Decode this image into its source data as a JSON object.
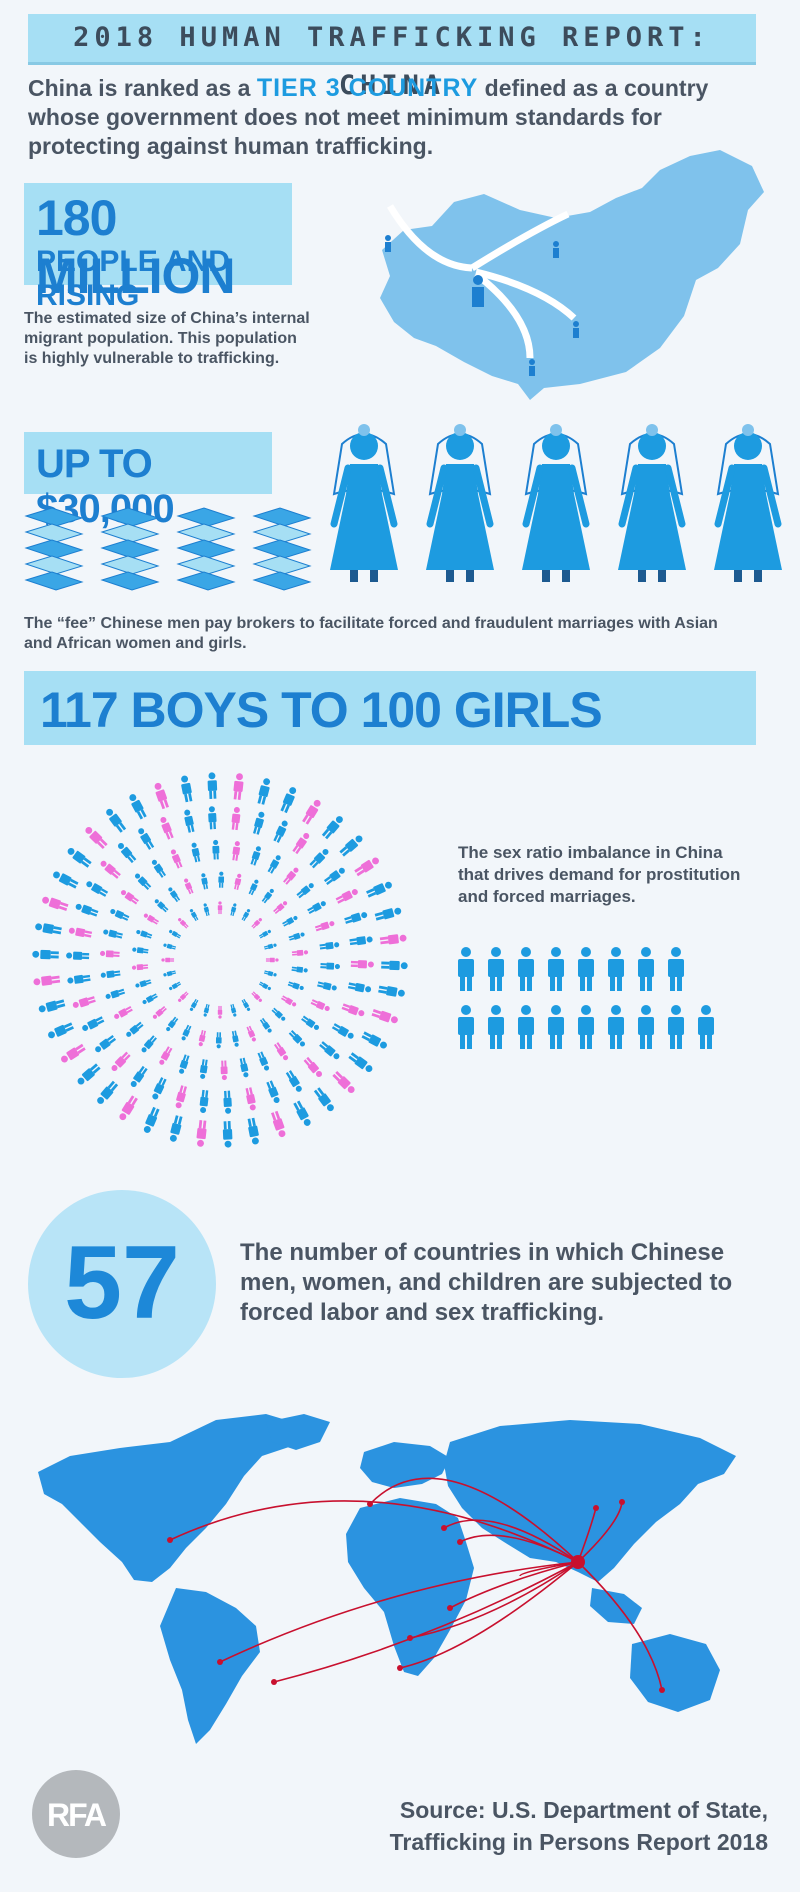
{
  "header": {
    "title": "2018 HUMAN TRAFFICKING REPORT: CHINA"
  },
  "intro": {
    "before": "China is ranked as a ",
    "highlight": "TIER 3 COUNTRY",
    "after": " defined as a country whose government does not meet minimum standards for protecting against human trafficking."
  },
  "migrants": {
    "line1": "180 MILLION",
    "line2": "PEOPLE AND RISING",
    "description": "The estimated size of China’s internal migrant population. This population is highly vulnerable to trafficking."
  },
  "fee": {
    "amount": "UP TO $30,000",
    "description": "The “fee” Chinese men pay brokers to facilitate forced and fraudulent marriages with Asian and African women and girls.",
    "bride_count": 5,
    "money_stacks": 4
  },
  "ratio": {
    "headline": "117 BOYS TO 100 GIRLS",
    "description": "The sex ratio imbalance in China that drives demand for prostitution and forced marriages.",
    "row1_count": 8,
    "row2_count": 9
  },
  "countries": {
    "number": "57",
    "description": "The number of countries in which Chinese men, women, and children are subjected to forced labor and sex trafficking."
  },
  "footer": {
    "logo": "RFA",
    "source_line1": "Source: U.S. Department of State,",
    "source_line2": "Trafficking in Persons Report 2018"
  },
  "colors": {
    "accent_blue": "#1d9be0",
    "light_blue": "#a6dff4",
    "pink": "#ee6fd8",
    "route_red": "#c8102e"
  }
}
